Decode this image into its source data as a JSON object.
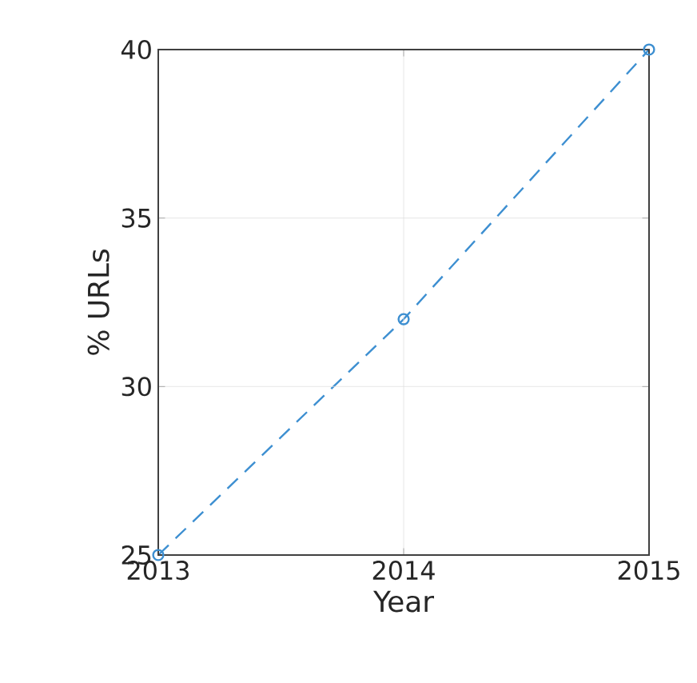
{
  "chart_data": {
    "type": "line",
    "xlabel": "Year",
    "ylabel": "% URLs",
    "x": [
      2013,
      2014,
      2015
    ],
    "series": [
      {
        "color": "#3d8fd1",
        "values": [
          25,
          32,
          40
        ]
      }
    ],
    "xlim": [
      2013,
      2015
    ],
    "xticks": [
      2013,
      2014,
      2015
    ],
    "ylim": [
      25,
      40
    ],
    "yticks": [
      25,
      30,
      35,
      40
    ],
    "grid": true,
    "marker": "circle",
    "line_style": "dashed"
  }
}
